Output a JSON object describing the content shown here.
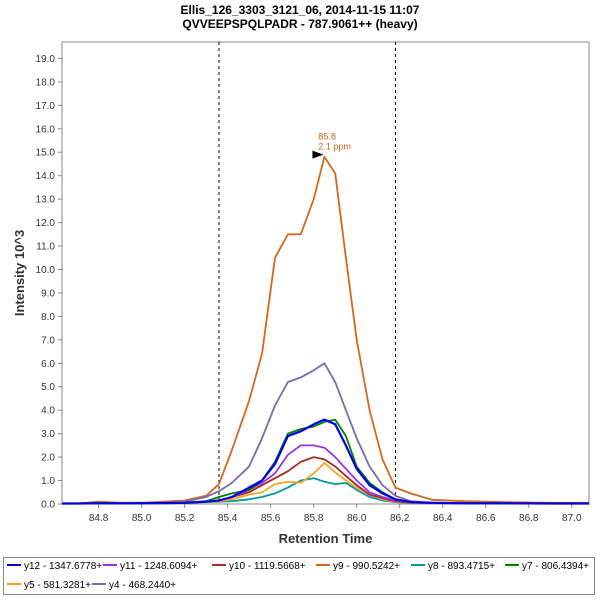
{
  "chart_data": {
    "type": "line",
    "title": "Ellis_126_3303_3121_06, 2014-11-15 11:07",
    "subtitle": "QVVEEPSPQLPADR - 787.9061++ (heavy)",
    "xlabel": "Retention Time",
    "ylabel": "Intensity 10^3",
    "xlim": [
      84.63,
      87.08
    ],
    "ylim": [
      0,
      19.7
    ],
    "xticks": [
      "84.8",
      "85.0",
      "85.2",
      "85.4",
      "85.6",
      "85.8",
      "86.0",
      "86.2",
      "86.4",
      "86.6",
      "86.8",
      "87.0"
    ],
    "yticks": [
      "0.0",
      "1.0",
      "2.0",
      "3.0",
      "4.0",
      "5.0",
      "6.0",
      "7.0",
      "8.0",
      "9.0",
      "10.0",
      "11.0",
      "12.0",
      "13.0",
      "14.0",
      "15.0",
      "16.0",
      "17.0",
      "18.0",
      "19.0"
    ],
    "grid": false,
    "legend_position": "bottom",
    "boundaries": [
      85.36,
      86.18
    ],
    "peak_annotation": {
      "x": 85.85,
      "y": 14.9,
      "rt_label": "85.8",
      "ppm_label": "2.1 ppm"
    },
    "series": [
      {
        "name": "y12 - 1347.6778+",
        "color": "#0000e6",
        "x": [
          84.63,
          84.7,
          84.8,
          84.9,
          85.0,
          85.1,
          85.2,
          85.3,
          85.36,
          85.42,
          85.5,
          85.56,
          85.62,
          85.68,
          85.74,
          85.8,
          85.85,
          85.9,
          85.95,
          86.0,
          86.06,
          86.12,
          86.18,
          86.25,
          86.35,
          86.5,
          86.7,
          86.9,
          87.08
        ],
        "y": [
          0.02,
          0.02,
          0.03,
          0.03,
          0.03,
          0.04,
          0.05,
          0.1,
          0.15,
          0.3,
          0.7,
          1.0,
          1.7,
          2.9,
          3.1,
          3.4,
          3.6,
          3.4,
          2.5,
          1.5,
          0.8,
          0.45,
          0.2,
          0.08,
          0.05,
          0.03,
          0.03,
          0.02,
          0.02
        ]
      },
      {
        "name": "y11 - 1248.6094+",
        "color": "#9933e6",
        "x": [
          84.63,
          84.7,
          84.8,
          84.9,
          85.0,
          85.1,
          85.2,
          85.3,
          85.36,
          85.42,
          85.5,
          85.56,
          85.62,
          85.68,
          85.74,
          85.8,
          85.85,
          85.9,
          85.95,
          86.0,
          86.06,
          86.12,
          86.18,
          86.25,
          86.35,
          86.5,
          86.7,
          86.9,
          87.08
        ],
        "y": [
          0.02,
          0.02,
          0.03,
          0.03,
          0.03,
          0.04,
          0.05,
          0.1,
          0.15,
          0.3,
          0.6,
          0.9,
          1.3,
          2.1,
          2.5,
          2.5,
          2.4,
          2.0,
          1.5,
          1.0,
          0.5,
          0.3,
          0.15,
          0.08,
          0.05,
          0.03,
          0.03,
          0.02,
          0.02
        ]
      },
      {
        "name": "y10 - 1119.5668+",
        "color": "#a52a2a",
        "x": [
          84.63,
          84.7,
          84.8,
          84.9,
          85.0,
          85.1,
          85.2,
          85.3,
          85.36,
          85.42,
          85.5,
          85.56,
          85.62,
          85.68,
          85.74,
          85.8,
          85.85,
          85.9,
          85.95,
          86.0,
          86.06,
          86.12,
          86.18,
          86.25,
          86.35,
          86.5,
          86.7,
          86.9,
          87.08
        ],
        "y": [
          0.02,
          0.02,
          0.03,
          0.03,
          0.03,
          0.04,
          0.05,
          0.1,
          0.15,
          0.3,
          0.5,
          0.8,
          1.1,
          1.4,
          1.8,
          2.0,
          1.9,
          1.6,
          1.2,
          0.8,
          0.4,
          0.25,
          0.12,
          0.06,
          0.04,
          0.03,
          0.02,
          0.02,
          0.02
        ]
      },
      {
        "name": "y9 - 990.5242+",
        "color": "#d2691e",
        "x": [
          84.63,
          84.7,
          84.8,
          84.9,
          85.0,
          85.1,
          85.2,
          85.3,
          85.36,
          85.42,
          85.5,
          85.56,
          85.62,
          85.68,
          85.74,
          85.8,
          85.85,
          85.9,
          85.95,
          86.0,
          86.06,
          86.12,
          86.18,
          86.25,
          86.35,
          86.5,
          86.7,
          86.9,
          87.08
        ],
        "y": [
          0.02,
          0.02,
          0.1,
          0.05,
          0.05,
          0.1,
          0.15,
          0.35,
          0.85,
          2.3,
          4.4,
          6.4,
          10.5,
          11.5,
          11.5,
          13.0,
          14.8,
          14.1,
          10.5,
          7.0,
          4.0,
          1.9,
          0.7,
          0.45,
          0.18,
          0.12,
          0.08,
          0.05,
          0.05
        ]
      },
      {
        "name": "y8 - 893.4715+",
        "color": "#009a9a",
        "x": [
          84.63,
          84.7,
          84.8,
          84.9,
          85.0,
          85.1,
          85.2,
          85.3,
          85.36,
          85.42,
          85.5,
          85.56,
          85.62,
          85.68,
          85.74,
          85.8,
          85.85,
          85.9,
          85.95,
          86.0,
          86.06,
          86.12,
          86.18,
          86.25,
          86.35,
          86.5,
          86.7,
          86.9,
          87.08
        ],
        "y": [
          0.02,
          0.02,
          0.03,
          0.03,
          0.03,
          0.04,
          0.05,
          0.08,
          0.1,
          0.12,
          0.2,
          0.3,
          0.45,
          0.7,
          1.0,
          1.1,
          0.95,
          0.85,
          0.9,
          0.6,
          0.3,
          0.15,
          0.08,
          0.05,
          0.04,
          0.03,
          0.02,
          0.02,
          0.02
        ]
      },
      {
        "name": "y7 - 806.4394+",
        "color": "#008000",
        "x": [
          84.63,
          84.7,
          84.8,
          84.9,
          85.0,
          85.1,
          85.2,
          85.3,
          85.36,
          85.42,
          85.5,
          85.56,
          85.62,
          85.68,
          85.74,
          85.8,
          85.85,
          85.9,
          85.95,
          86.0,
          86.06,
          86.12,
          86.18,
          86.25,
          86.35,
          86.5,
          86.7,
          86.9,
          87.08
        ],
        "y": [
          0.02,
          0.02,
          0.03,
          0.03,
          0.03,
          0.04,
          0.05,
          0.12,
          0.3,
          0.45,
          0.6,
          1.0,
          1.8,
          3.0,
          3.2,
          3.3,
          3.5,
          3.6,
          2.9,
          1.6,
          0.9,
          0.5,
          0.2,
          0.08,
          0.05,
          0.03,
          0.03,
          0.02,
          0.02
        ]
      },
      {
        "name": "y5 - 581.3281+",
        "color": "#f5a623",
        "x": [
          84.63,
          84.7,
          84.8,
          84.9,
          85.0,
          85.1,
          85.2,
          85.3,
          85.36,
          85.42,
          85.5,
          85.56,
          85.62,
          85.68,
          85.74,
          85.8,
          85.85,
          85.9,
          85.95,
          86.0,
          86.06,
          86.12,
          86.18,
          86.25,
          86.35,
          86.5,
          86.7,
          86.9,
          87.08
        ],
        "y": [
          0.02,
          0.02,
          0.03,
          0.03,
          0.03,
          0.04,
          0.05,
          0.08,
          0.12,
          0.2,
          0.4,
          0.5,
          0.85,
          0.95,
          0.9,
          1.3,
          1.75,
          1.35,
          1.0,
          0.7,
          0.4,
          0.2,
          0.1,
          0.05,
          0.04,
          0.03,
          0.02,
          0.02,
          0.02
        ]
      },
      {
        "name": "y4 - 468.2440+",
        "color": "#7b6aad",
        "x": [
          84.63,
          84.7,
          84.8,
          84.9,
          85.0,
          85.1,
          85.2,
          85.3,
          85.36,
          85.42,
          85.5,
          85.56,
          85.62,
          85.68,
          85.74,
          85.8,
          85.85,
          85.9,
          85.95,
          86.0,
          86.06,
          86.12,
          86.18,
          86.25,
          86.35,
          86.5,
          86.7,
          86.9,
          87.08
        ],
        "y": [
          0.02,
          0.02,
          0.03,
          0.03,
          0.05,
          0.06,
          0.1,
          0.3,
          0.55,
          0.9,
          1.6,
          2.8,
          4.2,
          5.2,
          5.4,
          5.7,
          6.0,
          5.2,
          4.0,
          2.8,
          1.6,
          0.8,
          0.35,
          0.12,
          0.06,
          0.04,
          0.03,
          0.02,
          0.02
        ]
      }
    ]
  }
}
